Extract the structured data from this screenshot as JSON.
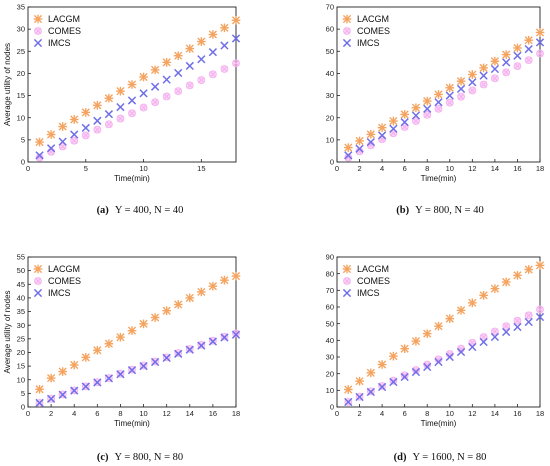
{
  "colors": {
    "LACGM": "#f4a460",
    "COMES": "#f5b4f0",
    "IMCS": "#6f6fe8"
  },
  "chart_data": [
    {
      "type": "scatter",
      "ylabel": "Average utility of nodes",
      "xlabel": "Time(min)",
      "caption_label": "(a)",
      "caption_params": "Y = 400, N = 40",
      "xlim": [
        0,
        18
      ],
      "ylim": [
        0,
        35
      ],
      "xticks": [
        0,
        5,
        10,
        15
      ],
      "yticks": [
        0,
        5,
        10,
        15,
        20,
        25,
        30,
        35
      ],
      "legend": "top-left",
      "x": [
        1,
        2,
        3,
        4,
        5,
        6,
        7,
        8,
        9,
        10,
        11,
        12,
        13,
        14,
        15,
        16,
        17,
        18
      ],
      "series": [
        {
          "name": "LACGM",
          "marker": "asterisk",
          "values": [
            4.5,
            6.2,
            8.0,
            9.6,
            11.2,
            12.8,
            14.4,
            16.0,
            17.5,
            19.2,
            20.8,
            22.5,
            24.0,
            25.6,
            27.2,
            28.8,
            30.3,
            32.0
          ]
        },
        {
          "name": "COMES",
          "marker": "circle-x",
          "values": [
            1.0,
            2.3,
            3.5,
            4.8,
            6.0,
            7.3,
            8.5,
            9.8,
            11.0,
            12.3,
            13.5,
            14.8,
            16.0,
            17.3,
            18.5,
            19.8,
            21.0,
            22.3
          ]
        },
        {
          "name": "IMCS",
          "marker": "x",
          "values": [
            1.5,
            3.1,
            4.6,
            6.2,
            7.7,
            9.3,
            10.8,
            12.4,
            13.9,
            15.5,
            17.0,
            18.6,
            20.1,
            21.7,
            23.2,
            24.8,
            26.3,
            27.9
          ]
        }
      ]
    },
    {
      "type": "scatter",
      "ylabel": "",
      "xlabel": "Time(min)",
      "caption_label": "(b)",
      "caption_params": "Y = 800, N = 40",
      "xlim": [
        0,
        18
      ],
      "ylim": [
        0,
        70
      ],
      "xticks": [
        0,
        2,
        4,
        6,
        8,
        10,
        12,
        14,
        16,
        18
      ],
      "yticks": [
        0,
        10,
        20,
        30,
        40,
        50,
        60,
        70
      ],
      "legend": "top-left",
      "x": [
        1,
        2,
        3,
        4,
        5,
        6,
        7,
        8,
        9,
        10,
        11,
        12,
        13,
        14,
        15,
        16,
        17,
        18
      ],
      "series": [
        {
          "name": "LACGM",
          "marker": "asterisk",
          "values": [
            6.5,
            9.5,
            12.5,
            15.5,
            18.5,
            21.5,
            24.5,
            27.5,
            30.5,
            33.5,
            36.5,
            39.5,
            42.5,
            45.5,
            48.5,
            51.5,
            55.0,
            58.5
          ]
        },
        {
          "name": "COMES",
          "marker": "circle-x",
          "values": [
            2.0,
            4.8,
            7.5,
            10.3,
            13.0,
            15.8,
            18.5,
            21.3,
            24.0,
            26.8,
            29.5,
            32.3,
            35.0,
            37.8,
            40.5,
            43.3,
            46.0,
            49.0
          ]
        },
        {
          "name": "IMCS",
          "marker": "x",
          "values": [
            3.0,
            6.0,
            9.0,
            12.0,
            15.0,
            18.0,
            21.0,
            24.0,
            27.0,
            30.0,
            33.0,
            36.0,
            39.0,
            42.0,
            45.0,
            48.0,
            51.0,
            54.0
          ]
        }
      ]
    },
    {
      "type": "scatter",
      "ylabel": "Average utility of nodes",
      "xlabel": "Time(min)",
      "caption_label": "(c)",
      "caption_params": "Y = 800, N = 80",
      "xlim": [
        0,
        18
      ],
      "ylim": [
        0,
        55
      ],
      "xticks": [
        0,
        2,
        4,
        6,
        8,
        10,
        12,
        14,
        16,
        18
      ],
      "yticks": [
        0,
        5,
        10,
        15,
        20,
        25,
        30,
        35,
        40,
        45,
        50,
        55
      ],
      "legend": "top-left",
      "x": [
        1,
        2,
        3,
        4,
        5,
        6,
        7,
        8,
        9,
        10,
        11,
        12,
        13,
        14,
        15,
        16,
        17,
        18
      ],
      "series": [
        {
          "name": "LACGM",
          "marker": "asterisk",
          "values": [
            6.5,
            10.6,
            13.0,
            15.4,
            18.2,
            20.8,
            23.2,
            25.6,
            28.0,
            30.5,
            32.8,
            35.3,
            37.6,
            40.0,
            42.2,
            44.3,
            46.5,
            48.0
          ]
        },
        {
          "name": "COMES",
          "marker": "circle-x",
          "values": [
            1.5,
            3.0,
            4.6,
            6.1,
            7.6,
            9.1,
            10.6,
            12.2,
            13.7,
            15.2,
            16.7,
            18.2,
            19.8,
            21.3,
            22.8,
            24.3,
            25.8,
            27.0
          ]
        },
        {
          "name": "IMCS",
          "marker": "x",
          "values": [
            1.5,
            3.0,
            4.5,
            6.0,
            7.5,
            9.0,
            10.5,
            12.0,
            13.5,
            15.0,
            16.5,
            18.0,
            19.5,
            21.0,
            22.5,
            24.0,
            25.5,
            26.5
          ]
        }
      ]
    },
    {
      "type": "scatter",
      "ylabel": "",
      "xlabel": "Time(min)",
      "caption_label": "(d)",
      "caption_params": "Y = 1600, N = 80",
      "xlim": [
        0,
        18
      ],
      "ylim": [
        0,
        90
      ],
      "xticks": [
        0,
        2,
        4,
        6,
        8,
        10,
        12,
        14,
        16,
        18
      ],
      "yticks": [
        0,
        10,
        20,
        30,
        40,
        50,
        60,
        70,
        80,
        90
      ],
      "legend": "top-left",
      "x": [
        1,
        2,
        3,
        4,
        5,
        6,
        7,
        8,
        9,
        10,
        11,
        12,
        13,
        14,
        15,
        16,
        17,
        18
      ],
      "series": [
        {
          "name": "LACGM",
          "marker": "asterisk",
          "values": [
            10.5,
            15.5,
            20.5,
            25.5,
            30.5,
            35.0,
            39.5,
            44.0,
            48.5,
            53.0,
            58.0,
            62.5,
            67.0,
            71.0,
            75.0,
            79.0,
            82.5,
            85.0
          ]
        },
        {
          "name": "COMES",
          "marker": "circle-x",
          "values": [
            3.0,
            6.2,
            9.4,
            12.6,
            15.8,
            19.0,
            22.2,
            25.4,
            28.6,
            31.8,
            35.0,
            38.5,
            42.0,
            45.3,
            48.5,
            51.8,
            55.0,
            58.5
          ]
        },
        {
          "name": "IMCS",
          "marker": "x",
          "values": [
            3.0,
            6.0,
            9.0,
            12.0,
            15.0,
            18.0,
            21.0,
            24.0,
            27.0,
            30.0,
            33.0,
            36.0,
            39.0,
            42.0,
            45.0,
            48.0,
            51.0,
            54.0
          ]
        }
      ]
    }
  ]
}
